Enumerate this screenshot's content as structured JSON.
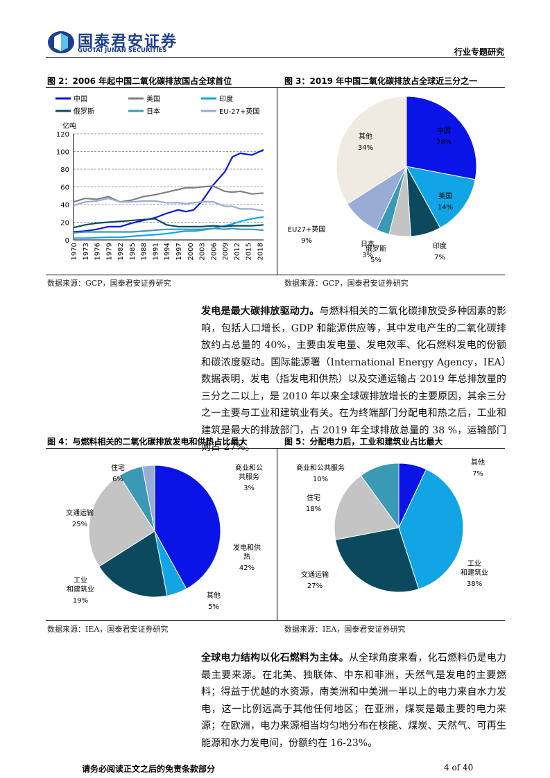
{
  "header": {
    "logo_cn": "国泰君安证券",
    "logo_en": "GUOTAI JUNAN SECURITIES",
    "section": "行业专题研究"
  },
  "fig2": {
    "caption": "图 2：2006 年起中国二氧化碳排放国占全球首位",
    "source": "数据来源：GCP，国泰君安证券研究"
  },
  "fig3": {
    "caption": "图 3：2019 年中国二氧化碳排放占全球近三分之一",
    "source": "数据来源：GCP，国泰君安证券研究"
  },
  "fig4": {
    "caption": "图 4：与燃料相关的二氧化碳排放发电和供热占比最大",
    "source": "数据来源：IEA，国泰君安证券研究"
  },
  "fig5": {
    "caption": "图 5：分配电力后，工业和建筑业占比最大",
    "source": "数据来源：IEA，国泰君安证券研究"
  },
  "para1": {
    "lead": "发电是最大碳排放驱动力。",
    "body": "与燃料相关的二氧化碳排放受多种因素的影响，包括人口增长，GDP 和能源供应等，其中发电产生的二氧化碳排放约占总量的 40%，主要由发电量、发电效率、化石燃料发电的份额和碳浓度驱动。国际能源署（International Energy Agency，IEA）数据表明，发电（指发电和供热）以及交通运输占 2019 年总排放量的三分之二以上，是 2010 年以来全球碳排放增长的主要原因，其余三分之一主要与工业和建筑业有关。在为终端部门分配电和热之后，工业和建筑是最大的排放部门，占 2019 年全球排放总量的 38 %，运输部门则占 27%。"
  },
  "para2": {
    "lead": "全球电力结构以化石燃料为主体。",
    "body": "从全球角度来看，化石燃料仍是电力最主要来源。在北美、独联体、中东和非洲，天然气是发电的主要燃料；得益于优越的水资源，南美洲和中美洲一半以上的电力来自水力发电，这一比例远高于其他任何地区；在亚洲，煤炭是最主要的电力来源；在欧洲，电力来源相当均匀地分布在核能、煤炭、天然气、可再生能源和水力发电间，份额约在 16-23%。"
  },
  "footer": {
    "disclaimer": "请务必阅读正文之后的免责条款部分",
    "page": "4 of 40"
  },
  "chart_data": [
    {
      "type": "line",
      "ylabel": "亿吨",
      "ylim": [
        0,
        120
      ],
      "yticks": [
        0,
        20,
        40,
        60,
        80,
        100,
        120
      ],
      "xlim": [
        1970,
        2019
      ],
      "xticks": [
        1970,
        1973,
        1976,
        1979,
        1982,
        1985,
        1988,
        1991,
        1994,
        1997,
        2000,
        2003,
        2006,
        2009,
        2012,
        2015,
        2018
      ],
      "grid": "horizontal dashed",
      "legend": "top",
      "x": [
        1970,
        1973,
        1976,
        1979,
        1982,
        1985,
        1988,
        1991,
        1994,
        1997,
        1999,
        2001,
        2003,
        2006,
        2009,
        2011,
        2013,
        2016,
        2019
      ],
      "series": [
        {
          "name": "中国",
          "color": "#0a14e6",
          "values": [
            9,
            10,
            12,
            15,
            15,
            19,
            22,
            25,
            30,
            34,
            32,
            34,
            43,
            62,
            77,
            94,
            98,
            96,
            102
          ]
        },
        {
          "name": "美国",
          "color": "#808080",
          "values": [
            43,
            47,
            46,
            49,
            43,
            45,
            49,
            51,
            54,
            57,
            59,
            59,
            60,
            61,
            55,
            54,
            55,
            52,
            53
          ]
        },
        {
          "name": "印度",
          "color": "#12a5e6",
          "values": [
            2,
            2,
            2.5,
            3,
            3,
            4,
            5,
            6,
            7,
            9,
            10,
            10,
            11,
            13,
            16,
            18,
            21,
            24,
            26
          ]
        },
        {
          "name": "俄罗斯",
          "color": "#0b4a5e",
          "values": [
            14,
            17,
            19,
            20,
            21,
            22,
            23,
            24,
            17,
            15,
            15,
            15,
            15,
            16,
            15,
            16,
            16,
            16,
            17
          ]
        },
        {
          "name": "日本",
          "color": "#3a9ab5",
          "values": [
            8,
            9,
            9,
            9,
            9,
            9,
            10,
            11,
            12,
            12,
            12,
            12,
            12,
            13,
            12,
            13,
            12,
            12,
            11
          ]
        },
        {
          "name": "EU-27+英国",
          "color": "#98acd6",
          "values": [
            39,
            43,
            44,
            47,
            43,
            43,
            44,
            44,
            42,
            42,
            41,
            42,
            43,
            43,
            38,
            38,
            35,
            35,
            33
          ]
        }
      ]
    },
    {
      "type": "pie",
      "slices": [
        {
          "label": "中国",
          "value": 28,
          "text": "28%",
          "color": "#0a14e6"
        },
        {
          "label": "美国",
          "value": 14,
          "text": "14%",
          "color": "#12a5e6"
        },
        {
          "label": "印度",
          "value": 7,
          "text": "7%",
          "color": "#0b4a5e"
        },
        {
          "label": "俄罗斯",
          "value": 5,
          "text": "5%",
          "color": "#c4c4c4"
        },
        {
          "label": "日本",
          "value": 3,
          "text": "3%",
          "color": "#3a9ab5"
        },
        {
          "label": "EU27+英国",
          "value": 9,
          "text": "9%",
          "color": "#98acd6"
        },
        {
          "label": "其他",
          "value": 34,
          "text": "34%",
          "color": "#efebe2"
        }
      ]
    },
    {
      "type": "pie",
      "slices": [
        {
          "label": "发电和供热",
          "value": 42,
          "text": "42%",
          "color": "#0a14e6"
        },
        {
          "label": "其他",
          "value": 5,
          "text": "5%",
          "color": "#12a5e6"
        },
        {
          "label": "工业和建筑业",
          "value": 19,
          "text": "19%",
          "color": "#0b4a5e"
        },
        {
          "label": "交通运输",
          "value": 25,
          "text": "25%",
          "color": "#c4c4c4"
        },
        {
          "label": "住宅",
          "value": 6,
          "text": "6%",
          "color": "#3a9ab5"
        },
        {
          "label": "商业和公共服务",
          "value": 3,
          "text": "3%",
          "color": "#98acd6"
        }
      ]
    },
    {
      "type": "pie",
      "slices": [
        {
          "label": "其他",
          "value": 7,
          "text": "7%",
          "color": "#0a14e6"
        },
        {
          "label": "工业和建筑业",
          "value": 38,
          "text": "38%",
          "color": "#12a5e6"
        },
        {
          "label": "交通运输",
          "value": 27,
          "text": "27%",
          "color": "#0b4a5e"
        },
        {
          "label": "住宅",
          "value": 18,
          "text": "18%",
          "color": "#c4c4c4"
        },
        {
          "label": "商业和公共服务",
          "value": 10,
          "text": "10%",
          "color": "#3a9ab5"
        }
      ]
    }
  ]
}
